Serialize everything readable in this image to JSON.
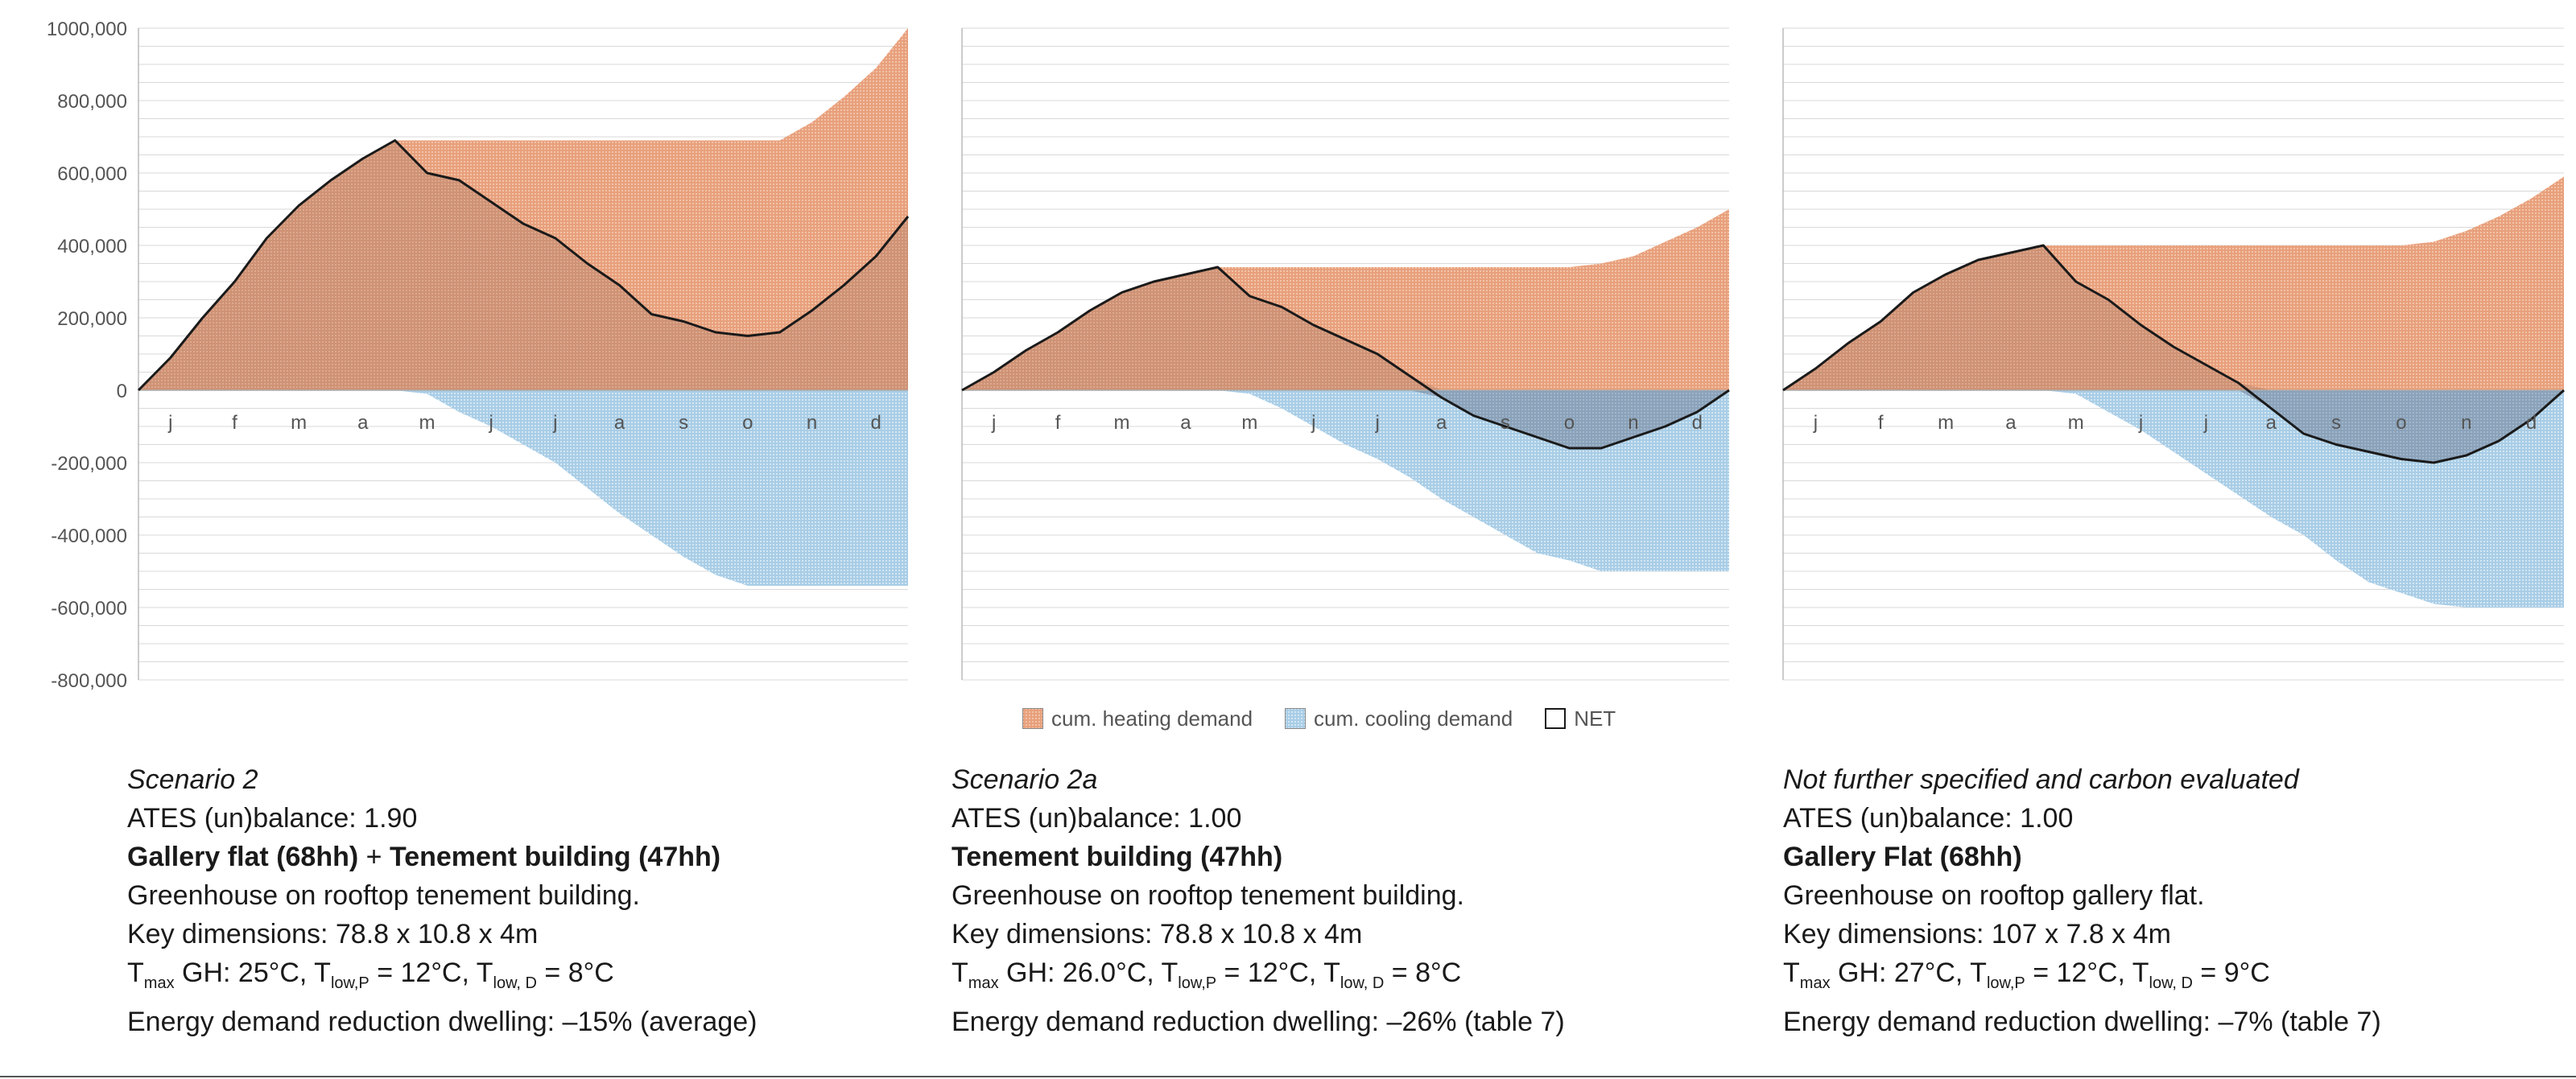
{
  "colors": {
    "heating": "#e8a07c",
    "cooling": "#a9cde6",
    "net_fill": "#cf9275",
    "overlap": "#8aa2ba",
    "net_line": "#1a1a1a",
    "grid": "#d9d9d9"
  },
  "legend": [
    {
      "key": "heating",
      "label": "cum. heating demand"
    },
    {
      "key": "cooling",
      "label": "cum. cooling demand"
    },
    {
      "key": "net",
      "label": "NET"
    }
  ],
  "chart_data": [
    {
      "type": "area",
      "title": "Scenario 2",
      "ylim": [
        -800000,
        1000000
      ],
      "yticks": [
        -800000,
        -600000,
        -400000,
        -200000,
        0,
        200000,
        400000,
        600000,
        800000,
        1000000
      ],
      "ytick_labels": [
        "-800,000",
        "-600,000",
        "-400,000",
        "-200,000",
        "0",
        "200,000",
        "400,000",
        "600,000",
        "800,000",
        "1000,000"
      ],
      "x_month_labels": [
        "j",
        "f",
        "m",
        "a",
        "m",
        "j",
        "j",
        "a",
        "s",
        "o",
        "n",
        "d"
      ],
      "x": [
        0,
        0.5,
        1,
        1.5,
        2,
        2.5,
        3,
        3.5,
        4,
        4.5,
        5,
        5.5,
        6,
        6.5,
        7,
        7.5,
        8,
        8.5,
        9,
        9.5,
        10,
        10.5,
        11,
        11.5,
        12
      ],
      "series": [
        {
          "name": "cum. heating demand",
          "values": [
            0,
            90000,
            200000,
            300000,
            420000,
            510000,
            580000,
            640000,
            690000,
            690000,
            690000,
            690000,
            690000,
            690000,
            690000,
            690000,
            690000,
            690000,
            690000,
            690000,
            690000,
            740000,
            810000,
            890000,
            1000000
          ]
        },
        {
          "name": "cum. cooling demand",
          "values": [
            0,
            0,
            0,
            0,
            0,
            0,
            0,
            0,
            0,
            -10000,
            -60000,
            -100000,
            -150000,
            -200000,
            -270000,
            -340000,
            -400000,
            -460000,
            -510000,
            -540000,
            -540000,
            -540000,
            -540000,
            -540000,
            -540000
          ]
        },
        {
          "name": "NET",
          "values": [
            0,
            90000,
            200000,
            300000,
            420000,
            510000,
            580000,
            640000,
            690000,
            600000,
            580000,
            520000,
            460000,
            420000,
            350000,
            290000,
            210000,
            190000,
            160000,
            150000,
            160000,
            220000,
            290000,
            370000,
            480000
          ]
        }
      ]
    },
    {
      "type": "area",
      "title": "Scenario 2a",
      "ylim": [
        -800000,
        1000000
      ],
      "yticks": [
        -800000,
        -600000,
        -400000,
        -200000,
        0,
        200000,
        400000,
        600000,
        800000,
        1000000
      ],
      "ytick_labels": [],
      "x_month_labels": [
        "j",
        "f",
        "m",
        "a",
        "m",
        "j",
        "j",
        "a",
        "s",
        "o",
        "n",
        "d"
      ],
      "x": [
        0,
        0.5,
        1,
        1.5,
        2,
        2.5,
        3,
        3.5,
        4,
        4.5,
        5,
        5.5,
        6,
        6.5,
        7,
        7.5,
        8,
        8.5,
        9,
        9.5,
        10,
        10.5,
        11,
        11.5,
        12
      ],
      "series": [
        {
          "name": "cum. heating demand",
          "values": [
            0,
            50000,
            110000,
            160000,
            220000,
            270000,
            300000,
            320000,
            340000,
            340000,
            340000,
            340000,
            340000,
            340000,
            340000,
            340000,
            340000,
            340000,
            340000,
            340000,
            350000,
            370000,
            410000,
            450000,
            500000
          ]
        },
        {
          "name": "cum. cooling demand",
          "values": [
            0,
            0,
            0,
            0,
            0,
            0,
            0,
            0,
            0,
            -10000,
            -50000,
            -100000,
            -150000,
            -190000,
            -240000,
            -300000,
            -350000,
            -400000,
            -450000,
            -470000,
            -500000,
            -500000,
            -500000,
            -500000,
            -500000
          ]
        },
        {
          "name": "NET",
          "values": [
            0,
            50000,
            110000,
            160000,
            220000,
            270000,
            300000,
            320000,
            340000,
            260000,
            230000,
            180000,
            140000,
            100000,
            40000,
            -20000,
            -70000,
            -100000,
            -130000,
            -160000,
            -160000,
            -130000,
            -100000,
            -60000,
            0
          ]
        }
      ]
    },
    {
      "type": "area",
      "title": "Not further specified and carbon evaluated",
      "ylim": [
        -800000,
        1000000
      ],
      "yticks": [
        -800000,
        -600000,
        -400000,
        -200000,
        0,
        200000,
        400000,
        600000,
        800000,
        1000000
      ],
      "ytick_labels": [],
      "x_month_labels": [
        "j",
        "f",
        "m",
        "a",
        "m",
        "j",
        "j",
        "a",
        "s",
        "o",
        "n",
        "d"
      ],
      "x": [
        0,
        0.5,
        1,
        1.5,
        2,
        2.5,
        3,
        3.5,
        4,
        4.5,
        5,
        5.5,
        6,
        6.5,
        7,
        7.5,
        8,
        8.5,
        9,
        9.5,
        10,
        10.5,
        11,
        11.5,
        12
      ],
      "series": [
        {
          "name": "cum. heating demand",
          "values": [
            0,
            60000,
            130000,
            190000,
            270000,
            320000,
            360000,
            380000,
            400000,
            400000,
            400000,
            400000,
            400000,
            400000,
            400000,
            400000,
            400000,
            400000,
            400000,
            400000,
            410000,
            440000,
            480000,
            530000,
            590000
          ]
        },
        {
          "name": "cum. cooling demand",
          "values": [
            0,
            0,
            0,
            0,
            0,
            0,
            0,
            0,
            0,
            -10000,
            -60000,
            -110000,
            -170000,
            -230000,
            -290000,
            -350000,
            -400000,
            -470000,
            -530000,
            -560000,
            -590000,
            -600000,
            -600000,
            -600000,
            -600000
          ]
        },
        {
          "name": "NET",
          "values": [
            0,
            60000,
            130000,
            190000,
            270000,
            320000,
            360000,
            380000,
            400000,
            300000,
            250000,
            180000,
            120000,
            70000,
            20000,
            -50000,
            -120000,
            -150000,
            -170000,
            -190000,
            -200000,
            -180000,
            -140000,
            -80000,
            0
          ]
        }
      ]
    }
  ],
  "captions": [
    {
      "title": "Scenario 2",
      "balance": "ATES (un)balance: 1.90",
      "building_a": "Gallery flat (68hh)",
      "building_join": " + ",
      "building_b": "Tenement building (47hh)",
      "greenhouse": "Greenhouse on rooftop tenement building.",
      "dimensions": "Key dimensions: 78.8 x 10.8 x 4m",
      "temp_t1": "T",
      "temp_s1": "max",
      "temp_t2": " GH: 25°C, T",
      "temp_s2": "low,P",
      "temp_t3": " = 12°C, T",
      "temp_s3": "low, D",
      "temp_t4": " = 8°C",
      "reduction": "Energy demand reduction dwelling: –15% (average)"
    },
    {
      "title": "Scenario 2a",
      "balance": "ATES (un)balance: 1.00",
      "building_a": "Tenement building (47hh)",
      "building_join": "",
      "building_b": "",
      "greenhouse": "Greenhouse on rooftop tenement building.",
      "dimensions": "Key dimensions: 78.8 x 10.8 x 4m",
      "temp_t1": "T",
      "temp_s1": "max",
      "temp_t2": " GH: 26.0°C, T",
      "temp_s2": "low,P",
      "temp_t3": " = 12°C, T",
      "temp_s3": "low, D",
      "temp_t4": " = 8°C",
      "reduction": "Energy demand reduction dwelling: –26% (table 7)"
    },
    {
      "title": "Not further specified and carbon evaluated",
      "balance": "ATES (un)balance: 1.00",
      "building_a": "Gallery Flat (68hh)",
      "building_join": "",
      "building_b": "",
      "greenhouse": "Greenhouse on rooftop gallery flat.",
      "dimensions": "Key dimensions: 107 x 7.8 x 4m",
      "temp_t1": "T",
      "temp_s1": "max",
      "temp_t2": " GH: 27°C, T",
      "temp_s2": "low,P",
      "temp_t3": " = 12°C, T",
      "temp_s3": "low, D",
      "temp_t4": " = 9°C",
      "reduction": "Energy demand reduction dwelling: –7% (table 7)"
    }
  ]
}
